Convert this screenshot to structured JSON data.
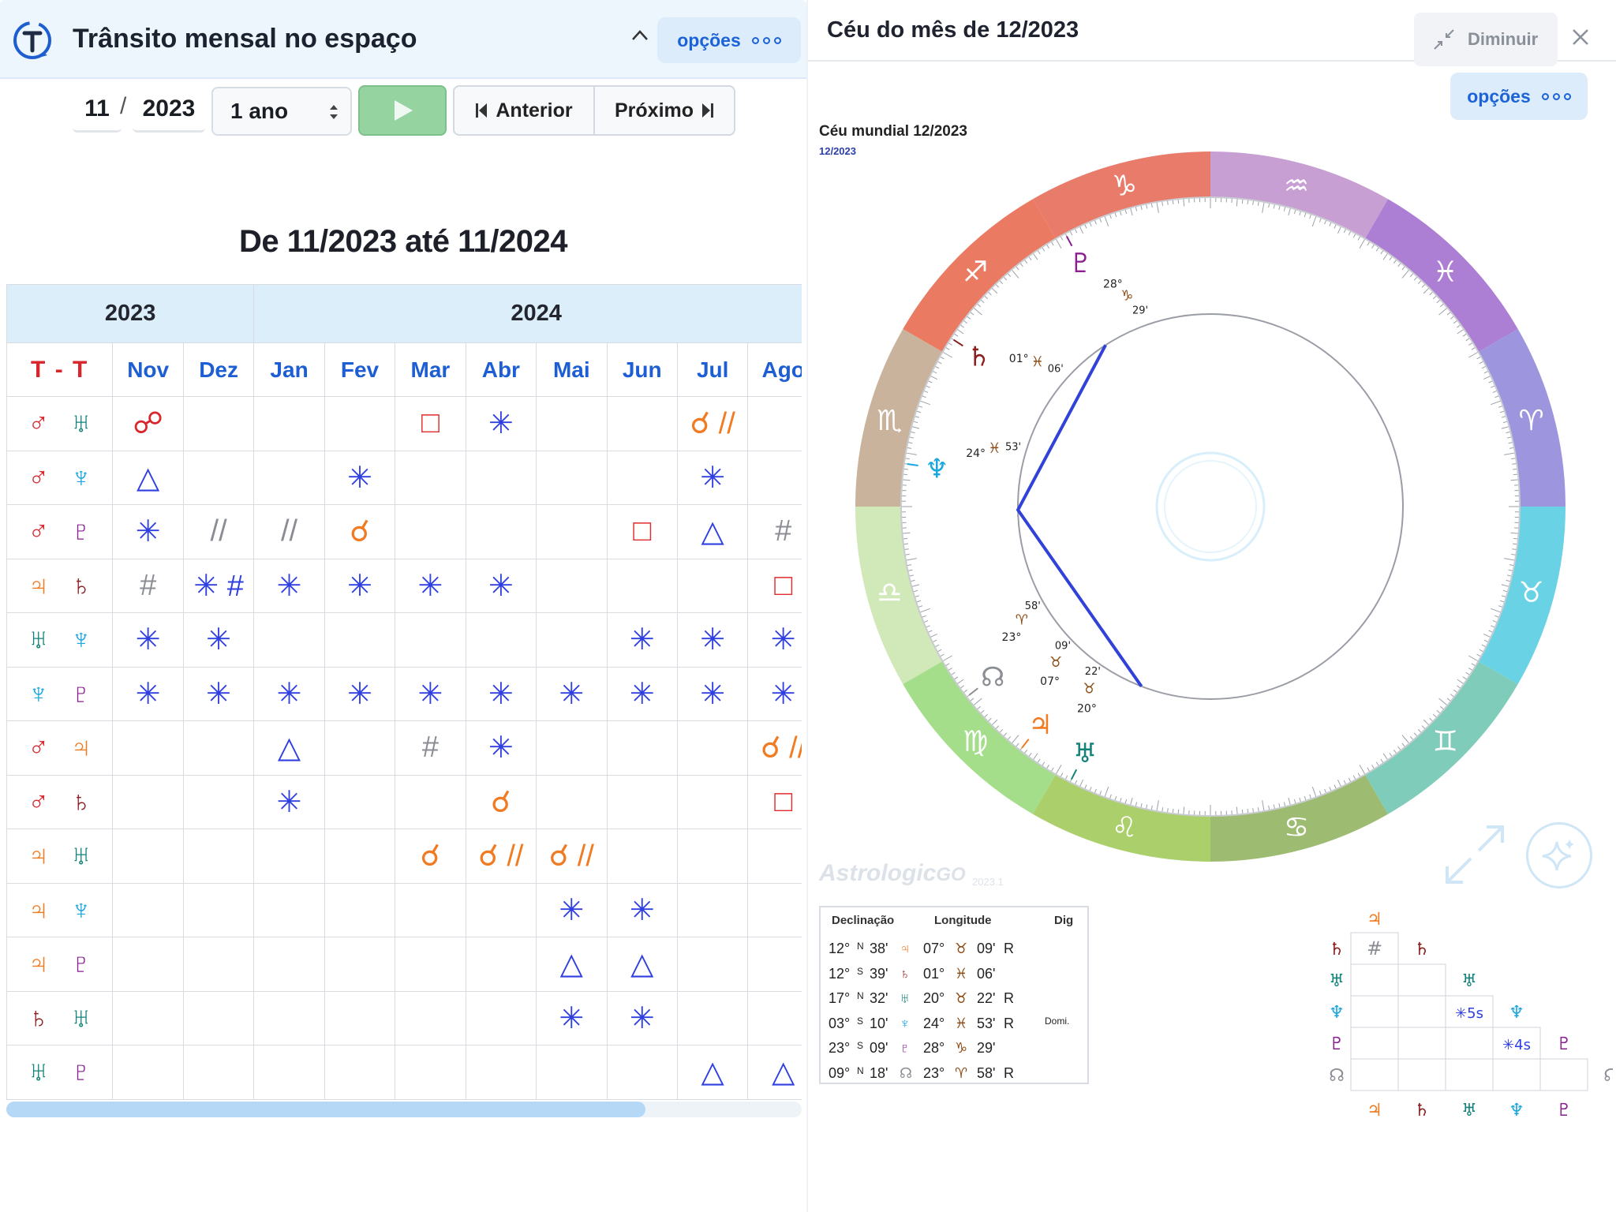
{
  "left": {
    "title": "Trânsito mensal no espaço",
    "options_label": "opções",
    "month": "11",
    "date_separator": "/",
    "year": "2023",
    "period": "1 ano",
    "prev_label": "Anterior",
    "next_label": "Próximo",
    "range_title": "De 11/2023 até 11/2024"
  },
  "table": {
    "years": [
      "2023",
      "2024"
    ],
    "tt_label": "T - T",
    "months": [
      "Nov",
      "Dez",
      "Jan",
      "Fev",
      "Mar",
      "Abr",
      "Mai",
      "Jun",
      "Jul",
      "Ago"
    ],
    "rows": [
      {
        "p1": "♂",
        "p2": "♅",
        "c1": "#d9262c",
        "c2": "#13837a",
        "cells": [
          [
            "☍",
            "#d9262c"
          ],
          [
            "",
            ""
          ],
          [
            "",
            ""
          ],
          [
            "",
            ""
          ],
          [
            "□",
            "#e02c2c"
          ],
          [
            "✳",
            "#2f3fe0"
          ],
          [
            "",
            ""
          ],
          [
            "",
            ""
          ],
          [
            "☌ //",
            "#f07b22"
          ],
          [
            "",
            ""
          ]
        ]
      },
      {
        "p1": "♂",
        "p2": "♆",
        "c1": "#d9262c",
        "c2": "#1aa6df",
        "cells": [
          [
            "△",
            "#2f3fe0"
          ],
          [
            "",
            ""
          ],
          [
            "",
            ""
          ],
          [
            "✳",
            "#2f3fe0"
          ],
          [
            "",
            ""
          ],
          [
            "",
            ""
          ],
          [
            "",
            ""
          ],
          [
            "",
            ""
          ],
          [
            "✳",
            "#2f3fe0"
          ],
          [
            "",
            ""
          ]
        ]
      },
      {
        "p1": "♂",
        "p2": "♇",
        "c1": "#d9262c",
        "c2": "#8a1f8f",
        "cells": [
          [
            "✳",
            "#2f3fe0"
          ],
          [
            "//",
            "#8a8d93"
          ],
          [
            "//",
            "#8a8d93"
          ],
          [
            "☌",
            "#f07b22"
          ],
          [
            "",
            ""
          ],
          [
            "",
            ""
          ],
          [
            "",
            ""
          ],
          [
            "□",
            "#e02c2c"
          ],
          [
            "△",
            "#2f3fe0"
          ],
          [
            "#",
            "#8a8d93"
          ]
        ]
      },
      {
        "p1": "♃",
        "p2": "♄",
        "c1": "#f07b22",
        "c2": "#8b1d1d",
        "cells": [
          [
            "#",
            "#8a8d93"
          ],
          [
            "✳ #",
            "#2f3fe0"
          ],
          [
            "✳",
            "#2f3fe0"
          ],
          [
            "✳",
            "#2f3fe0"
          ],
          [
            "✳",
            "#2f3fe0"
          ],
          [
            "✳",
            "#2f3fe0"
          ],
          [
            "",
            ""
          ],
          [
            "",
            ""
          ],
          [
            "",
            ""
          ],
          [
            "□",
            "#e02c2c"
          ]
        ]
      },
      {
        "p1": "♅",
        "p2": "♆",
        "c1": "#13837a",
        "c2": "#1aa6df",
        "cells": [
          [
            "✳",
            "#2f3fe0"
          ],
          [
            "✳",
            "#2f3fe0"
          ],
          [
            "",
            ""
          ],
          [
            "",
            ""
          ],
          [
            "",
            ""
          ],
          [
            "",
            ""
          ],
          [
            "",
            ""
          ],
          [
            "✳",
            "#2f3fe0"
          ],
          [
            "✳",
            "#2f3fe0"
          ],
          [
            "✳",
            "#2f3fe0"
          ]
        ]
      },
      {
        "p1": "♆",
        "p2": "♇",
        "c1": "#1aa6df",
        "c2": "#8a1f8f",
        "cells": [
          [
            "✳",
            "#2f3fe0"
          ],
          [
            "✳",
            "#2f3fe0"
          ],
          [
            "✳",
            "#2f3fe0"
          ],
          [
            "✳",
            "#2f3fe0"
          ],
          [
            "✳",
            "#2f3fe0"
          ],
          [
            "✳",
            "#2f3fe0"
          ],
          [
            "✳",
            "#2f3fe0"
          ],
          [
            "✳",
            "#2f3fe0"
          ],
          [
            "✳",
            "#2f3fe0"
          ],
          [
            "✳",
            "#2f3fe0"
          ]
        ]
      },
      {
        "p1": "♂",
        "p2": "♃",
        "c1": "#d9262c",
        "c2": "#f07b22",
        "cells": [
          [
            "",
            ""
          ],
          [
            "",
            ""
          ],
          [
            "△",
            "#2f3fe0"
          ],
          [
            "",
            ""
          ],
          [
            "#",
            "#8a8d93"
          ],
          [
            "✳",
            "#2f3fe0"
          ],
          [
            "",
            ""
          ],
          [
            "",
            ""
          ],
          [
            "",
            ""
          ],
          [
            "☌ //",
            "#f07b22"
          ]
        ]
      },
      {
        "p1": "♂",
        "p2": "♄",
        "c1": "#d9262c",
        "c2": "#8b1d1d",
        "cells": [
          [
            "",
            ""
          ],
          [
            "",
            ""
          ],
          [
            "✳",
            "#2f3fe0"
          ],
          [
            "",
            ""
          ],
          [
            "",
            ""
          ],
          [
            "☌",
            "#f07b22"
          ],
          [
            "",
            ""
          ],
          [
            "",
            ""
          ],
          [
            "",
            ""
          ],
          [
            "□",
            "#e02c2c"
          ]
        ]
      },
      {
        "p1": "♃",
        "p2": "♅",
        "c1": "#f07b22",
        "c2": "#13837a",
        "cells": [
          [
            "",
            ""
          ],
          [
            "",
            ""
          ],
          [
            "",
            ""
          ],
          [
            "",
            ""
          ],
          [
            "☌",
            "#f07b22"
          ],
          [
            "☌ //",
            "#f07b22"
          ],
          [
            "☌ //",
            "#f07b22"
          ],
          [
            "",
            ""
          ],
          [
            "",
            ""
          ],
          [
            "",
            ""
          ]
        ]
      },
      {
        "p1": "♃",
        "p2": "♆",
        "c1": "#f07b22",
        "c2": "#1aa6df",
        "cells": [
          [
            "",
            ""
          ],
          [
            "",
            ""
          ],
          [
            "",
            ""
          ],
          [
            "",
            ""
          ],
          [
            "",
            ""
          ],
          [
            "",
            ""
          ],
          [
            "✳",
            "#2f3fe0"
          ],
          [
            "✳",
            "#2f3fe0"
          ],
          [
            "",
            ""
          ],
          [
            "",
            ""
          ]
        ]
      },
      {
        "p1": "♃",
        "p2": "♇",
        "c1": "#f07b22",
        "c2": "#8a1f8f",
        "cells": [
          [
            "",
            ""
          ],
          [
            "",
            ""
          ],
          [
            "",
            ""
          ],
          [
            "",
            ""
          ],
          [
            "",
            ""
          ],
          [
            "",
            ""
          ],
          [
            "△",
            "#2f3fe0"
          ],
          [
            "△",
            "#2f3fe0"
          ],
          [
            "",
            ""
          ],
          [
            "",
            ""
          ]
        ]
      },
      {
        "p1": "♄",
        "p2": "♅",
        "c1": "#8b1d1d",
        "c2": "#13837a",
        "cells": [
          [
            "",
            ""
          ],
          [
            "",
            ""
          ],
          [
            "",
            ""
          ],
          [
            "",
            ""
          ],
          [
            "",
            ""
          ],
          [
            "",
            ""
          ],
          [
            "✳",
            "#2f3fe0"
          ],
          [
            "✳",
            "#2f3fe0"
          ],
          [
            "",
            ""
          ],
          [
            "",
            ""
          ]
        ]
      },
      {
        "p1": "♅",
        "p2": "♇",
        "c1": "#13837a",
        "c2": "#8a1f8f",
        "cells": [
          [
            "",
            ""
          ],
          [
            "",
            ""
          ],
          [
            "",
            ""
          ],
          [
            "",
            ""
          ],
          [
            "",
            ""
          ],
          [
            "",
            ""
          ],
          [
            "",
            ""
          ],
          [
            "",
            ""
          ],
          [
            "△",
            "#2f3fe0"
          ],
          [
            "△",
            "#2f3fe0"
          ]
        ]
      }
    ]
  },
  "right": {
    "title": "Céu do mês de 12/2023",
    "minimize_label": "Diminuir",
    "options_label": "opções",
    "chart_title": "Céu mundial 12/2023",
    "chart_subtitle": "12/2023",
    "brand": "Astrologic",
    "brand_go": "GO",
    "brand_version": "2023.1"
  },
  "wheel": {
    "signs": [
      "♑",
      "♐",
      "♏",
      "♎",
      "♍",
      "♌",
      "♋",
      "♊",
      "♉",
      "♈",
      "♓",
      "♒"
    ],
    "planets": [
      {
        "glyph": "♇",
        "color": "#8a1f8f",
        "deg": "28°",
        "sign": "♑",
        "min": "29'"
      },
      {
        "glyph": "♄",
        "color": "#8b1d1d",
        "deg": "01°",
        "sign": "♓",
        "min": "06'"
      },
      {
        "glyph": "♆",
        "color": "#1aa6df",
        "deg": "24°",
        "sign": "♓",
        "min": "53'"
      },
      {
        "glyph": "☊",
        "color": "#8a8d93",
        "deg": "23°",
        "sign": "♈",
        "min": "58'"
      },
      {
        "glyph": "♃",
        "color": "#f07b22",
        "deg": "07°",
        "sign": "♉",
        "min": "09'"
      },
      {
        "glyph": "♅",
        "color": "#13837a",
        "deg": "20°",
        "sign": "♉",
        "min": "22'"
      }
    ]
  },
  "planet_table": {
    "headers": [
      "Declinação",
      "Longitude",
      "Dig"
    ],
    "rows": [
      {
        "decl_deg": "12°",
        "dir": "N",
        "decl_min": "38'",
        "glyph": "♃",
        "color": "#f07b22",
        "lon_deg": "07°",
        "sign": "♉",
        "lon_min": "09'",
        "retro": "R",
        "dig": ""
      },
      {
        "decl_deg": "12°",
        "dir": "S",
        "decl_min": "39'",
        "glyph": "♄",
        "color": "#8b1d1d",
        "lon_deg": "01°",
        "sign": "♓",
        "lon_min": "06'",
        "retro": "",
        "dig": ""
      },
      {
        "decl_deg": "17°",
        "dir": "N",
        "decl_min": "32'",
        "glyph": "♅",
        "color": "#13837a",
        "lon_deg": "20°",
        "sign": "♉",
        "lon_min": "22'",
        "retro": "R",
        "dig": ""
      },
      {
        "decl_deg": "03°",
        "dir": "S",
        "decl_min": "10'",
        "glyph": "♆",
        "color": "#1aa6df",
        "lon_deg": "24°",
        "sign": "♓",
        "lon_min": "53'",
        "retro": "R",
        "dig": "Domi."
      },
      {
        "decl_deg": "23°",
        "dir": "S",
        "decl_min": "09'",
        "glyph": "♇",
        "color": "#8a1f8f",
        "lon_deg": "28°",
        "sign": "♑",
        "lon_min": "29'",
        "retro": "",
        "dig": ""
      },
      {
        "decl_deg": "09°",
        "dir": "N",
        "decl_min": "18'",
        "glyph": "☊",
        "color": "#8a8d93",
        "lon_deg": "23°",
        "sign": "♈",
        "lon_min": "58'",
        "retro": "R",
        "dig": ""
      }
    ]
  },
  "aspect_grid": {
    "planets": [
      {
        "glyph": "♃",
        "color": "#f07b22"
      },
      {
        "glyph": "♄",
        "color": "#8b1d1d"
      },
      {
        "glyph": "♅",
        "color": "#13837a"
      },
      {
        "glyph": "♆",
        "color": "#1aa6df"
      },
      {
        "glyph": "♇",
        "color": "#8a1f8f"
      },
      {
        "glyph": "☊",
        "color": "#8a8d93"
      }
    ],
    "aspects": [
      {
        "row": 1,
        "col": 0,
        "symbol": "#",
        "color": "#8a8d93"
      },
      {
        "row": 3,
        "col": 2,
        "symbol": "✳5s",
        "color": "#2f3fe0"
      },
      {
        "row": 4,
        "col": 3,
        "symbol": "✳4s",
        "color": "#2f3fe0"
      }
    ]
  }
}
